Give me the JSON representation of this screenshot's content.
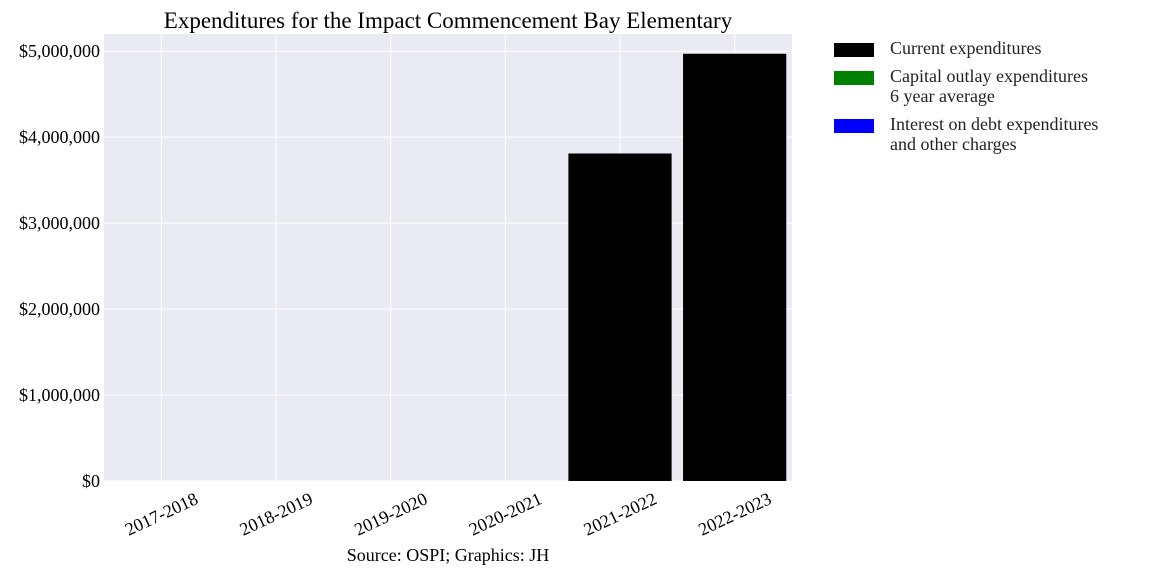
{
  "chart_data": {
    "type": "bar",
    "title": "Expenditures for the Impact Commencement Bay Elementary",
    "xlabel": "Source: OSPI; Graphics: JH",
    "ylabel": "",
    "categories": [
      "2017-2018",
      "2018-2019",
      "2019-2020",
      "2020-2021",
      "2021-2022",
      "2022-2023"
    ],
    "series": [
      {
        "name": "Current expenditures",
        "color": "#000000",
        "values": [
          0,
          0,
          0,
          0,
          3810000,
          4970000
        ]
      },
      {
        "name": "Capital outlay expenditures\n6 year average",
        "color": "#008000",
        "values": [
          0,
          0,
          0,
          0,
          0,
          0
        ]
      },
      {
        "name": "Interest on debt expenditures\nand other charges",
        "color": "#0000ff",
        "values": [
          0,
          0,
          0,
          0,
          0,
          0
        ]
      }
    ],
    "ylim": [
      0,
      5200000
    ],
    "yticks": [
      0,
      1000000,
      2000000,
      3000000,
      4000000,
      5000000
    ],
    "ytick_labels": [
      "$0",
      "$1,000,000",
      "$2,000,000",
      "$3,000,000",
      "$4,000,000",
      "$5,000,000"
    ],
    "grid": true,
    "legend_position": "outside-right",
    "background": "#eaeaf2"
  }
}
